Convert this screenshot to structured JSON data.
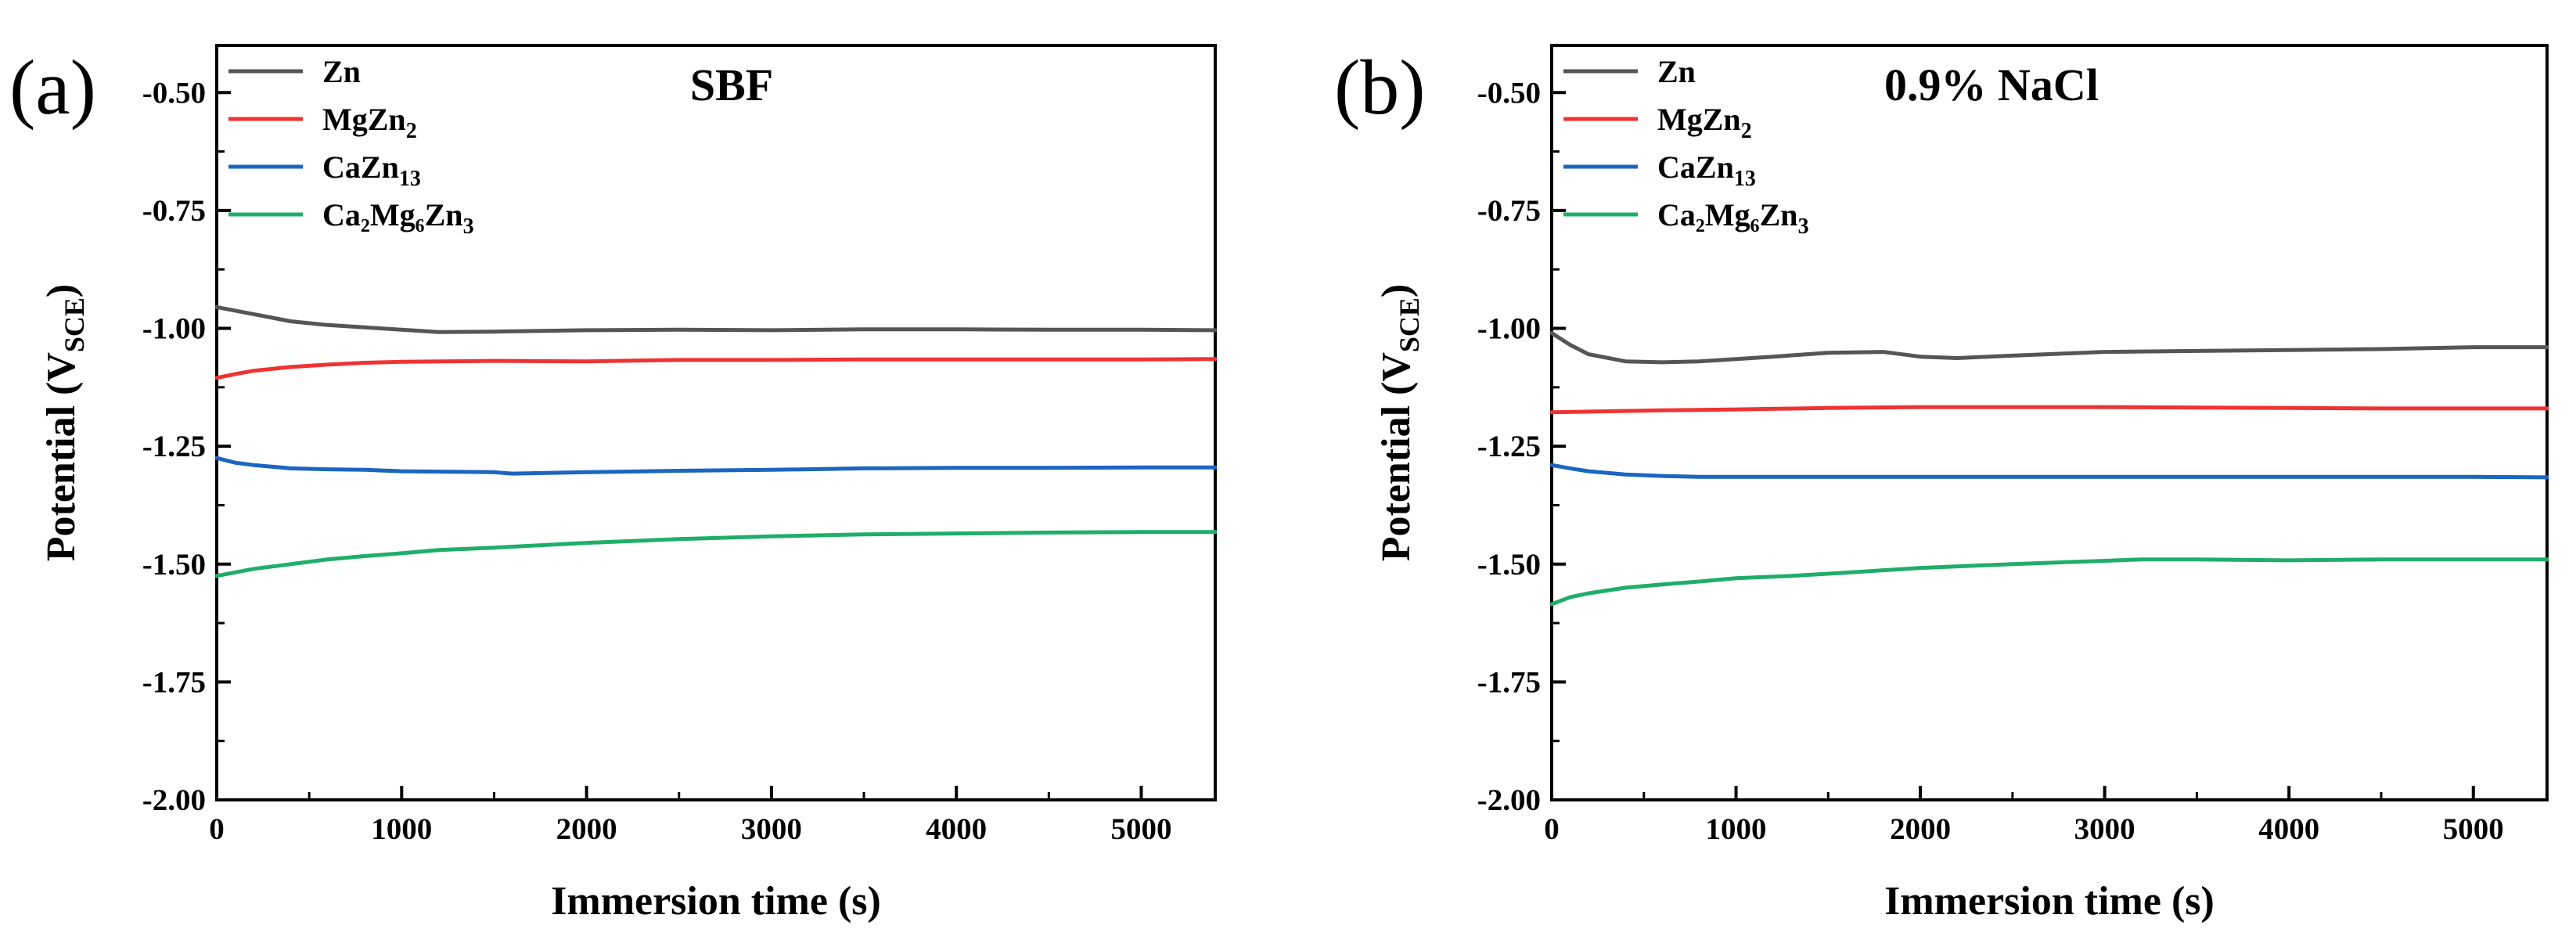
{
  "chart_data": [
    {
      "type": "line",
      "panel": "(a)",
      "title": "SBF",
      "xlabel": "Immersion time (s)",
      "ylabel": "Potential (V",
      "ylabel_sub": "SCE",
      "ylabel_close": ")",
      "xlim": [
        0,
        5400
      ],
      "ylim": [
        -2.0,
        -0.4
      ],
      "x_ticks": [
        0,
        1000,
        2000,
        3000,
        4000,
        5000
      ],
      "x_tick_labels": [
        "0",
        "1000",
        "2000",
        "3000",
        "4000",
        "5000"
      ],
      "y_ticks": [
        -0.5,
        -0.75,
        -1.0,
        -1.25,
        -1.5,
        -1.75,
        -2.0
      ],
      "y_tick_labels": [
        "-0.50",
        "-0.75",
        "-1.00",
        "-1.25",
        "-1.50",
        "-1.75",
        "-2.00"
      ],
      "legend": "top-left",
      "grid": false,
      "series": [
        {
          "name": "Zn",
          "name_main": "Zn",
          "name_sub": "",
          "color": "#555555",
          "x": [
            0,
            200,
            400,
            600,
            800,
            1000,
            1200,
            1500,
            2000,
            2500,
            3000,
            3500,
            4000,
            4500,
            5000,
            5400
          ],
          "y": [
            -0.955,
            -0.97,
            -0.985,
            -0.993,
            -0.998,
            -1.003,
            -1.008,
            -1.007,
            -1.004,
            -1.003,
            -1.004,
            -1.002,
            -1.002,
            -1.003,
            -1.003,
            -1.004
          ]
        },
        {
          "name": "MgZn2",
          "name_main": "MgZn",
          "name_sub": "2",
          "color": "#ee3333",
          "x": [
            0,
            100,
            200,
            400,
            600,
            800,
            1000,
            1500,
            2000,
            2500,
            3000,
            3500,
            4000,
            4500,
            5000,
            5400
          ],
          "y": [
            -1.105,
            -1.097,
            -1.09,
            -1.082,
            -1.077,
            -1.073,
            -1.071,
            -1.069,
            -1.07,
            -1.067,
            -1.067,
            -1.066,
            -1.066,
            -1.066,
            -1.066,
            -1.065
          ]
        },
        {
          "name": "CaZn13",
          "name_main": "CaZn",
          "name_sub": "13",
          "color": "#1a66c0",
          "x": [
            0,
            100,
            200,
            400,
            600,
            800,
            1000,
            1500,
            1600,
            2000,
            2500,
            3000,
            3500,
            4000,
            4500,
            5000,
            5400
          ],
          "y": [
            -1.275,
            -1.285,
            -1.29,
            -1.297,
            -1.299,
            -1.3,
            -1.303,
            -1.305,
            -1.308,
            -1.305,
            -1.302,
            -1.3,
            -1.297,
            -1.296,
            -1.296,
            -1.295,
            -1.295
          ]
        },
        {
          "name": "Ca2Mg6Zn3",
          "name_main": "Ca₂Mg₆Zn",
          "name_sub": "3",
          "color": "#1fae6a",
          "x": [
            0,
            200,
            400,
            600,
            800,
            1000,
            1200,
            1500,
            2000,
            2500,
            3000,
            3500,
            4000,
            4500,
            5000,
            5400
          ],
          "y": [
            -1.525,
            -1.51,
            -1.5,
            -1.49,
            -1.483,
            -1.477,
            -1.47,
            -1.465,
            -1.455,
            -1.447,
            -1.441,
            -1.437,
            -1.435,
            -1.433,
            -1.432,
            -1.432
          ]
        }
      ]
    },
    {
      "type": "line",
      "panel": "(b)",
      "title": "0.9% NaCl",
      "xlabel": "Immersion time (s)",
      "ylabel": "Potential (V",
      "ylabel_sub": "SCE",
      "ylabel_close": ")",
      "xlim": [
        0,
        5400
      ],
      "ylim": [
        -2.0,
        -0.4
      ],
      "x_ticks": [
        0,
        1000,
        2000,
        3000,
        4000,
        5000
      ],
      "x_tick_labels": [
        "0",
        "1000",
        "2000",
        "3000",
        "4000",
        "5000"
      ],
      "y_ticks": [
        -0.5,
        -0.75,
        -1.0,
        -1.25,
        -1.5,
        -1.75,
        -2.0
      ],
      "y_tick_labels": [
        "-0.50",
        "-0.75",
        "-1.00",
        "-1.25",
        "-1.50",
        "-1.75",
        "-2.00"
      ],
      "legend": "top-left",
      "grid": false,
      "series": [
        {
          "name": "Zn",
          "name_main": "Zn",
          "name_sub": "",
          "color": "#555555",
          "x": [
            0,
            100,
            200,
            400,
            600,
            800,
            1000,
            1200,
            1500,
            1800,
            2000,
            2200,
            2500,
            3000,
            3500,
            4000,
            4500,
            5000,
            5400
          ],
          "y": [
            -1.01,
            -1.035,
            -1.055,
            -1.07,
            -1.072,
            -1.07,
            -1.065,
            -1.06,
            -1.052,
            -1.05,
            -1.06,
            -1.063,
            -1.058,
            -1.05,
            -1.048,
            -1.046,
            -1.044,
            -1.04,
            -1.04
          ]
        },
        {
          "name": "MgZn2",
          "name_main": "MgZn",
          "name_sub": "2",
          "color": "#ee3333",
          "x": [
            0,
            300,
            600,
            1000,
            1500,
            2000,
            2500,
            3000,
            3500,
            4000,
            4500,
            5000,
            5400
          ],
          "y": [
            -1.178,
            -1.176,
            -1.174,
            -1.172,
            -1.169,
            -1.167,
            -1.167,
            -1.167,
            -1.168,
            -1.169,
            -1.17,
            -1.17,
            -1.17
          ]
        },
        {
          "name": "CaZn13",
          "name_main": "CaZn",
          "name_sub": "13",
          "color": "#1a66c0",
          "x": [
            0,
            100,
            200,
            400,
            600,
            800,
            1000,
            1500,
            2000,
            2500,
            3000,
            3500,
            4000,
            4500,
            5000,
            5400
          ],
          "y": [
            -1.29,
            -1.297,
            -1.303,
            -1.31,
            -1.313,
            -1.315,
            -1.315,
            -1.315,
            -1.315,
            -1.315,
            -1.315,
            -1.315,
            -1.315,
            -1.315,
            -1.315,
            -1.316
          ]
        },
        {
          "name": "Ca2Mg6Zn3",
          "name_main": "Ca₂Mg₆Zn",
          "name_sub": "3",
          "color": "#1fae6a",
          "x": [
            0,
            100,
            200,
            400,
            600,
            800,
            1000,
            1300,
            1600,
            2000,
            2500,
            3000,
            3200,
            3500,
            4000,
            4500,
            5000,
            5400
          ],
          "y": [
            -1.585,
            -1.57,
            -1.562,
            -1.55,
            -1.543,
            -1.537,
            -1.53,
            -1.525,
            -1.518,
            -1.508,
            -1.5,
            -1.493,
            -1.49,
            -1.49,
            -1.492,
            -1.49,
            -1.49,
            -1.49
          ]
        }
      ]
    }
  ]
}
